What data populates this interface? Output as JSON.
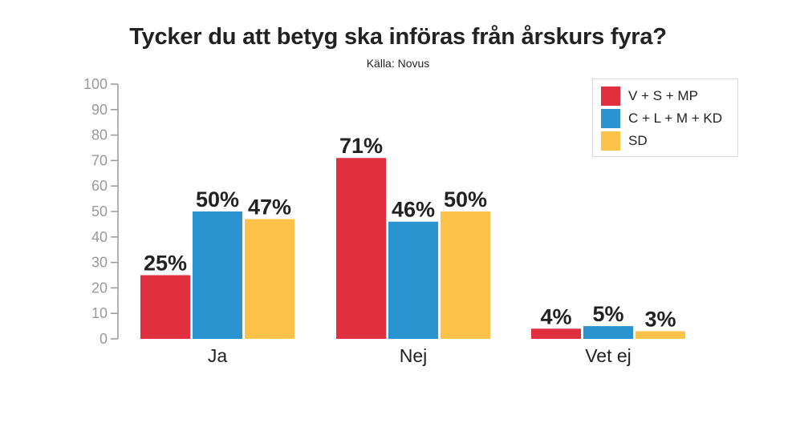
{
  "chart_data": {
    "type": "bar",
    "title": "Tycker du att betyg ska införas från årskurs fyra?",
    "subtitle": "Källa: Novus",
    "xlabel": "",
    "ylabel": "",
    "categories": [
      "Ja",
      "Nej",
      "Vet ej"
    ],
    "series": [
      {
        "name": "V + S + MP",
        "values": [
          25,
          71,
          4
        ],
        "labels": [
          "25%",
          "71%",
          "4%"
        ],
        "color": "#e03040"
      },
      {
        "name": "C + L + M + KD",
        "values": [
          50,
          46,
          5
        ],
        "labels": [
          "50%",
          "46%",
          "5%"
        ],
        "color": "#2b93cf"
      },
      {
        "name": "SD",
        "values": [
          47,
          50,
          3
        ],
        "labels": [
          "47%",
          "50%",
          "3%"
        ],
        "color": "#fdc24a"
      }
    ],
    "ylim": [
      0,
      100
    ],
    "yticks": [
      0,
      10,
      20,
      30,
      40,
      50,
      60,
      70,
      80,
      90,
      100
    ],
    "grid": false,
    "legend_position": "top-right"
  },
  "colors": {
    "axis": "#999999",
    "text": "#222222",
    "legend_border": "#d9d9d9"
  }
}
